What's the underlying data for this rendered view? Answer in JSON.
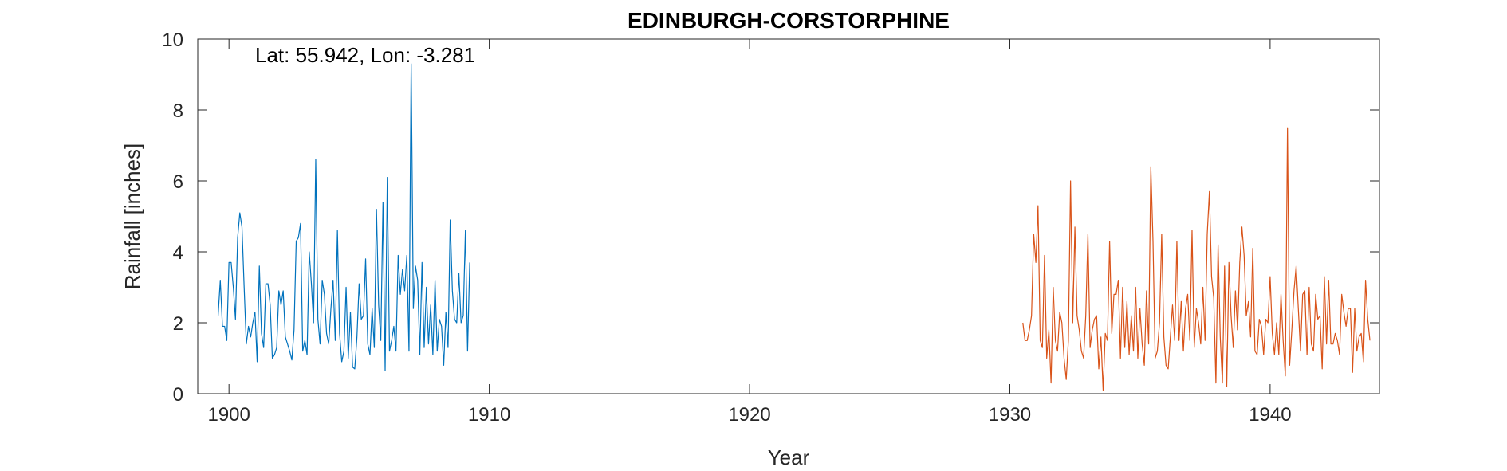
{
  "chart_data": {
    "type": "line",
    "title": "EDINBURGH-CORSTORPHINE",
    "xlabel": "Year",
    "ylabel": "Rainfall [inches]",
    "annotation": "Lat: 55.942, Lon: -3.281",
    "xlim": [
      1898.8,
      1944.2
    ],
    "ylim": [
      0,
      10
    ],
    "xticks": [
      1900,
      1910,
      1920,
      1930,
      1940
    ],
    "yticks": [
      0,
      2,
      4,
      6,
      8,
      10
    ],
    "grid": false,
    "legend": "none",
    "series": [
      {
        "color": "#0072BD",
        "x_start": 1899.583,
        "x_step": 0.0833333,
        "values": [
          2.2,
          3.2,
          1.9,
          1.9,
          1.5,
          3.7,
          3.7,
          3.0,
          2.1,
          4.4,
          5.1,
          4.7,
          3.0,
          1.4,
          1.9,
          1.6,
          2.0,
          2.3,
          0.9,
          3.6,
          1.7,
          1.3,
          3.1,
          3.1,
          2.5,
          1.0,
          1.1,
          1.3,
          2.9,
          2.5,
          2.9,
          1.6,
          1.4,
          1.2,
          0.95,
          1.8,
          4.3,
          4.4,
          4.8,
          1.2,
          1.5,
          1.1,
          4.0,
          3.1,
          2.0,
          6.6,
          2.1,
          1.4,
          3.2,
          2.8,
          1.7,
          1.4,
          2.4,
          3.2,
          1.5,
          4.6,
          1.7,
          0.9,
          1.2,
          3.0,
          1.0,
          2.3,
          0.75,
          0.7,
          1.6,
          3.1,
          2.1,
          2.2,
          3.8,
          1.4,
          1.1,
          2.4,
          1.3,
          5.2,
          2.5,
          1.5,
          5.4,
          0.65,
          6.1,
          1.2,
          1.5,
          1.9,
          1.2,
          3.9,
          2.8,
          3.5,
          2.9,
          3.9,
          1.2,
          9.3,
          2.4,
          3.6,
          3.2,
          1.1,
          3.7,
          1.3,
          3.0,
          1.4,
          2.5,
          1.1,
          3.2,
          1.2,
          2.1,
          1.9,
          0.8,
          2.3,
          1.3,
          4.9,
          2.9,
          2.1,
          2.0,
          3.4,
          2.0,
          2.2,
          4.6,
          1.2,
          3.7
        ]
      },
      {
        "color": "#D95319",
        "x_start": 1930.5,
        "x_step": 0.0833333,
        "values": [
          2.0,
          1.5,
          1.5,
          1.8,
          2.2,
          4.5,
          3.7,
          5.3,
          1.5,
          1.3,
          3.9,
          1.0,
          1.8,
          0.3,
          3.0,
          1.5,
          1.2,
          2.3,
          2.0,
          1.0,
          0.4,
          1.5,
          6.0,
          2.0,
          4.7,
          2.2,
          1.8,
          1.2,
          1.0,
          2.2,
          4.5,
          1.3,
          1.8,
          2.1,
          2.2,
          0.7,
          1.6,
          0.1,
          1.7,
          1.5,
          4.3,
          1.7,
          2.8,
          2.8,
          3.2,
          1.0,
          3.0,
          1.3,
          2.6,
          1.1,
          2.2,
          1.2,
          3.0,
          1.0,
          2.4,
          1.4,
          0.8,
          2.9,
          1.4,
          6.4,
          4.3,
          1.0,
          1.2,
          2.0,
          4.5,
          1.6,
          0.8,
          0.7,
          1.6,
          2.5,
          1.5,
          4.3,
          1.5,
          2.6,
          1.2,
          2.4,
          2.8,
          1.5,
          4.6,
          1.3,
          2.4,
          2.0,
          1.4,
          3.0,
          1.5,
          4.5,
          5.7,
          3.3,
          2.7,
          0.3,
          4.2,
          1.6,
          0.3,
          3.6,
          0.2,
          3.7,
          2.2,
          1.3,
          2.9,
          1.8,
          3.7,
          4.7,
          3.9,
          2.2,
          2.6,
          1.6,
          4.1,
          1.2,
          1.1,
          2.1,
          1.9,
          1.1,
          2.1,
          2.0,
          3.3,
          1.7,
          1.1,
          2.0,
          1.1,
          2.8,
          1.5,
          0.5,
          7.5,
          0.8,
          1.8,
          2.9,
          3.6,
          2.4,
          1.2,
          2.8,
          2.9,
          1.1,
          3.0,
          1.4,
          1.2,
          2.8,
          2.1,
          2.2,
          0.7,
          3.3,
          1.4,
          3.2,
          1.4,
          1.4,
          1.7,
          1.5,
          1.1,
          2.8,
          2.3,
          1.9,
          2.4,
          2.4,
          0.6,
          2.4,
          1.2,
          1.6,
          1.7,
          0.9,
          3.2,
          2.1,
          1.5
        ]
      }
    ]
  }
}
